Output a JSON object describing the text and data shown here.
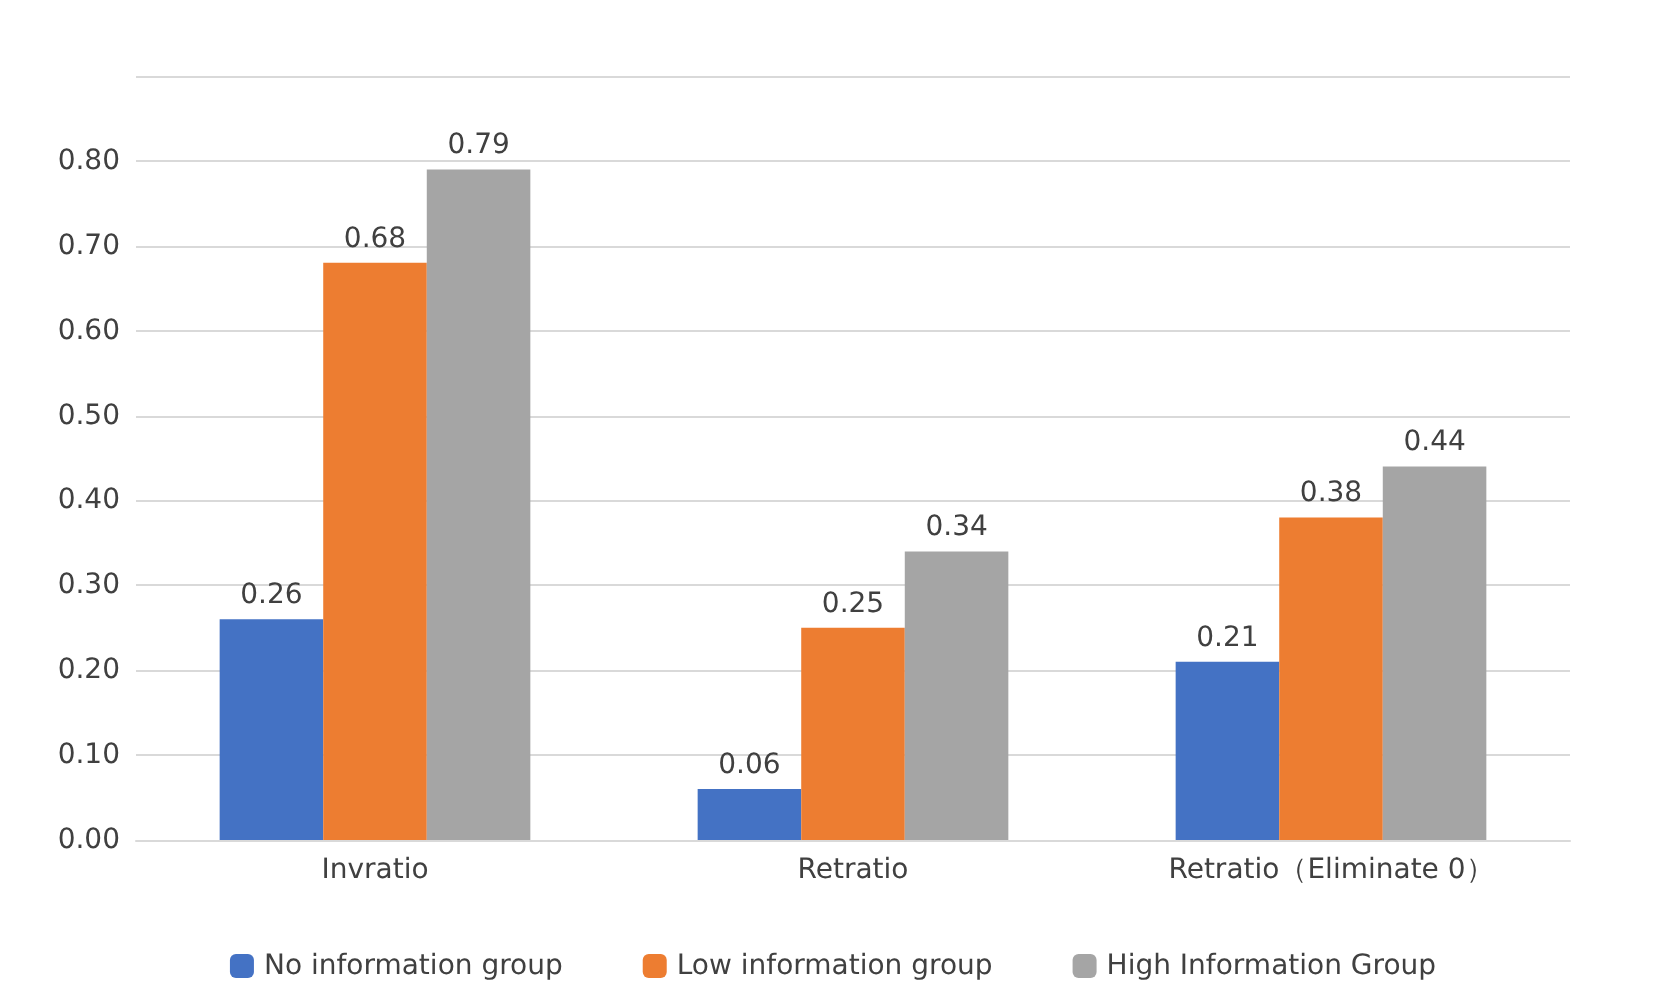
{
  "chart_data": {
    "type": "bar",
    "categories": [
      "Invratio",
      "Retratio",
      "Retratio（Eliminate 0）"
    ],
    "series": [
      {
        "name": "No information group",
        "color": "#4472c4",
        "values": [
          0.26,
          0.06,
          0.21
        ]
      },
      {
        "name": "Low information group",
        "color": "#ed7d31",
        "values": [
          0.68,
          0.25,
          0.38
        ]
      },
      {
        "name": "High Information Group",
        "color": "#a5a5a5",
        "values": [
          0.79,
          0.34,
          0.44
        ]
      }
    ],
    "ylim": [
      0,
      0.9
    ],
    "yticks": [
      {
        "value": 0,
        "label": "0.00"
      },
      {
        "value": 0.1,
        "label": "0.10"
      },
      {
        "value": 0.2,
        "label": "0.20"
      },
      {
        "value": 0.3,
        "label": "0.30"
      },
      {
        "value": 0.4,
        "label": "0.40"
      },
      {
        "value": 0.5,
        "label": "0.50"
      },
      {
        "value": 0.6,
        "label": "0.60"
      },
      {
        "value": 0.7,
        "label": "0.70"
      },
      {
        "value": 0.8,
        "label": "0.80"
      },
      {
        "value": 0.9,
        "label": null
      }
    ],
    "grid": "y",
    "legend": "bottom",
    "data_labels": true
  }
}
